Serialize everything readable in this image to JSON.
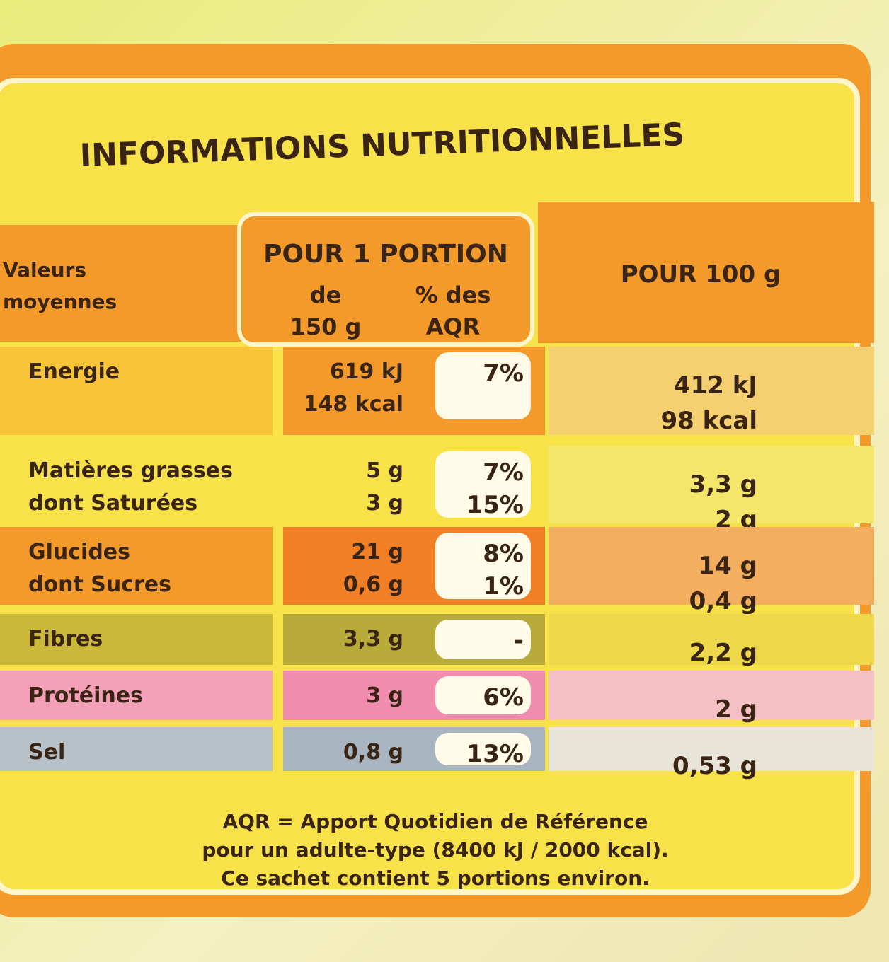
{
  "title": "INFORMATIONS NUTRITIONNELLES",
  "header": {
    "label": [
      "Valeurs",
      "moyennes"
    ],
    "portion": "POUR 1 PORTION",
    "portion_sub": [
      "de",
      "150 g"
    ],
    "aqr_sub": [
      "% des",
      "AQR"
    ],
    "per100": "POUR 100 g"
  },
  "rows": [
    {
      "label": [
        "Energie"
      ],
      "portion": [
        "619 kJ",
        "148 kcal"
      ],
      "aqr": [
        "7%"
      ],
      "per100": [
        "412 kJ",
        "98 kcal"
      ]
    },
    {
      "label": [
        "Matières grasses",
        "dont Saturées"
      ],
      "portion": [
        "5 g",
        "3 g"
      ],
      "aqr": [
        "7%",
        "15%"
      ],
      "per100": [
        "3,3 g",
        "2 g"
      ]
    },
    {
      "label": [
        "Glucides",
        "dont Sucres"
      ],
      "portion": [
        "21 g",
        "0,6 g"
      ],
      "aqr": [
        "8%",
        "1%"
      ],
      "per100": [
        "14 g",
        "0,4 g"
      ]
    },
    {
      "label": [
        "Fibres"
      ],
      "portion": [
        "3,3 g"
      ],
      "aqr": [
        "-"
      ],
      "per100": [
        "2,2 g"
      ]
    },
    {
      "label": [
        "Protéines"
      ],
      "portion": [
        "3 g"
      ],
      "aqr": [
        "6%"
      ],
      "per100": [
        "2 g"
      ]
    },
    {
      "label": [
        "Sel"
      ],
      "portion": [
        "0,8 g"
      ],
      "aqr": [
        "13%"
      ],
      "per100": [
        "0,53 g"
      ]
    }
  ],
  "footer": [
    "AQR = Apport Quotidien de Référence",
    "pour un adulte-type (8400 kJ / 2000 kcal).",
    "Ce sachet contient 5 portions environ."
  ]
}
